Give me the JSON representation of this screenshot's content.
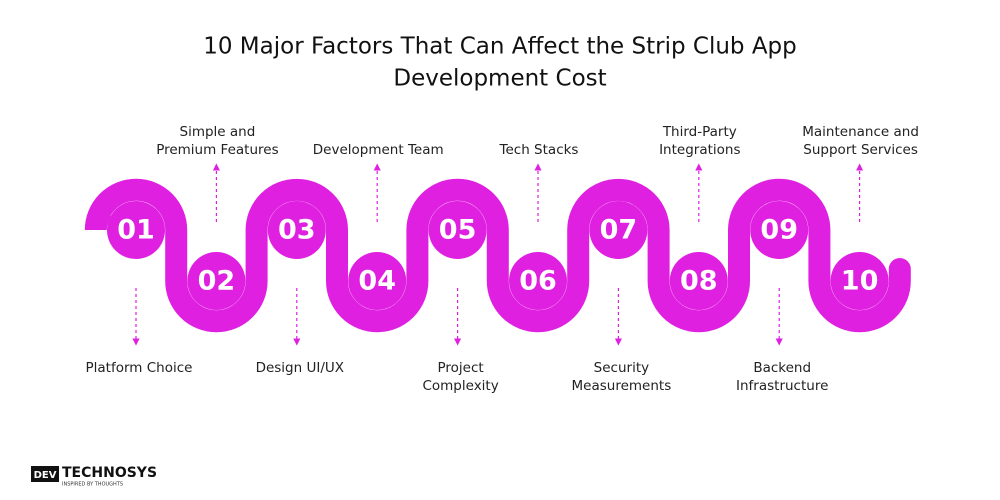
{
  "title": [
    "10 Major Factors That Can Affect the Strip Club App",
    "Development Cost"
  ],
  "steps": [
    {
      "number": "01",
      "label": [
        "Platform Choice"
      ]
    },
    {
      "number": "02",
      "label": [
        "Simple and",
        "Premium Features"
      ]
    },
    {
      "number": "03",
      "label": [
        "Design UI/UX"
      ]
    },
    {
      "number": "04",
      "label": [
        "Development Team"
      ]
    },
    {
      "number": "05",
      "label": [
        "Project",
        "Complexity"
      ]
    },
    {
      "number": "06",
      "label": [
        "Tech Stacks"
      ]
    },
    {
      "number": "07",
      "label": [
        "Security",
        "Measurements"
      ]
    },
    {
      "number": "08",
      "label": [
        "Third-Party",
        "Integrations"
      ]
    },
    {
      "number": "09",
      "label": [
        "Backend",
        "Infrastructure"
      ]
    },
    {
      "number": "10",
      "label": [
        "Maintenance and",
        "Support Services"
      ]
    }
  ],
  "logo": {
    "mark": "DEV",
    "name": "TECHNOSYS",
    "tagline": "INSPIRED BY THOUGHTS"
  }
}
